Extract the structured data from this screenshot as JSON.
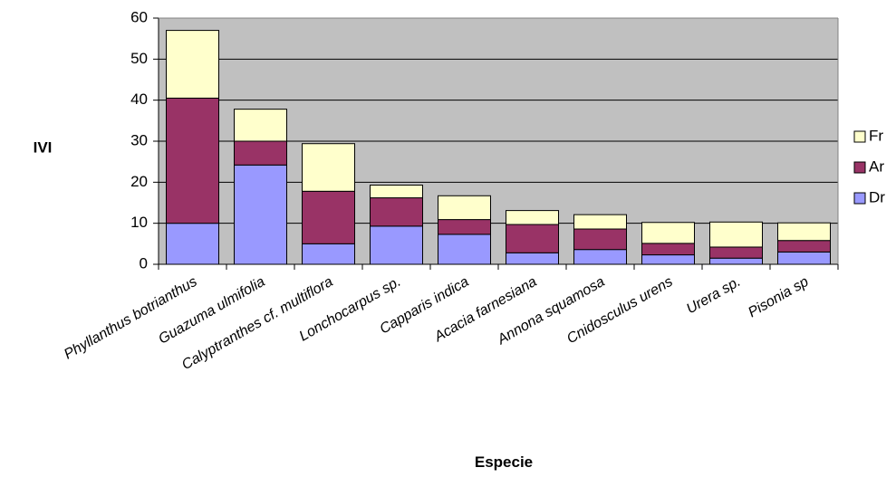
{
  "chart_data": {
    "type": "bar",
    "stacked": true,
    "title": "",
    "xlabel": "Especie",
    "ylabel": "IVI",
    "ylim": [
      0,
      60
    ],
    "yticks": [
      0,
      10,
      20,
      30,
      40,
      50,
      60
    ],
    "grid": true,
    "legend_position": "right",
    "plot_background": "#c0c0c0",
    "categories": [
      "Phyllanthus botrianthus",
      "Guazuma ulmifolia",
      "Calyptranthes cf. multiflora",
      "Lonchocarpus sp.",
      "Capparis indica",
      "Acacia farnesiana",
      "Annona squamosa",
      "Cnidosculus urens",
      "Urera sp.",
      "Pisonia sp"
    ],
    "series": [
      {
        "name": "Dr",
        "color": "#9999ff",
        "values": [
          10.0,
          24.2,
          5.0,
          9.3,
          7.3,
          2.8,
          3.6,
          2.3,
          1.5,
          3.0
        ]
      },
      {
        "name": "Ar",
        "color": "#993366",
        "values": [
          30.5,
          5.8,
          12.8,
          6.9,
          3.6,
          6.9,
          5.0,
          2.8,
          2.7,
          2.8
        ]
      },
      {
        "name": "Fr",
        "color": "#ffffcc",
        "values": [
          16.5,
          7.8,
          11.6,
          3.1,
          5.8,
          3.4,
          3.5,
          5.1,
          6.1,
          4.3
        ]
      }
    ]
  }
}
